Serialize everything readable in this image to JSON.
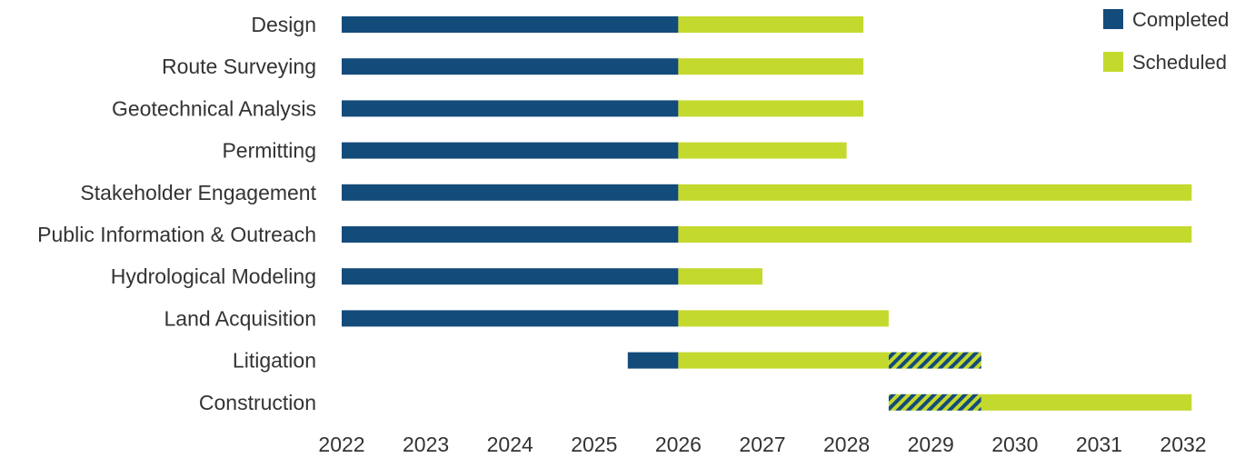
{
  "chart_data": {
    "type": "bar",
    "subtype": "gantt",
    "title": "",
    "xlabel": "",
    "ylabel": "",
    "x_ticks": [
      "2022",
      "2023",
      "2024",
      "2025",
      "2026",
      "2027",
      "2028",
      "2029",
      "2030",
      "2031",
      "2032"
    ],
    "xlim": [
      2022,
      2032
    ],
    "grid": false,
    "legend": {
      "placement": "top-right",
      "entries": [
        {
          "label": "Completed",
          "color": "#134b7a"
        },
        {
          "label": "Scheduled",
          "color": "#c4d92e"
        }
      ]
    },
    "colors": {
      "completed": "#134b7a",
      "scheduled": "#c4d92e",
      "hatch_stripe": "#134b7a",
      "hatch_base": "#c4d92e"
    },
    "tasks": [
      {
        "name": "Design",
        "segments": [
          {
            "status": "completed",
            "start": 2022.0,
            "end": 2026.0
          },
          {
            "status": "scheduled",
            "start": 2026.0,
            "end": 2028.2
          }
        ]
      },
      {
        "name": "Route Surveying",
        "segments": [
          {
            "status": "completed",
            "start": 2022.0,
            "end": 2026.0
          },
          {
            "status": "scheduled",
            "start": 2026.0,
            "end": 2028.2
          }
        ]
      },
      {
        "name": "Geotechnical Analysis",
        "segments": [
          {
            "status": "completed",
            "start": 2022.0,
            "end": 2026.0
          },
          {
            "status": "scheduled",
            "start": 2026.0,
            "end": 2028.2
          }
        ]
      },
      {
        "name": "Permitting",
        "segments": [
          {
            "status": "completed",
            "start": 2022.0,
            "end": 2026.0
          },
          {
            "status": "scheduled",
            "start": 2026.0,
            "end": 2028.0
          }
        ]
      },
      {
        "name": "Stakeholder Engagement",
        "segments": [
          {
            "status": "completed",
            "start": 2022.0,
            "end": 2026.0
          },
          {
            "status": "scheduled",
            "start": 2026.0,
            "end": 2032.1
          }
        ]
      },
      {
        "name": "Public Information & Outreach",
        "segments": [
          {
            "status": "completed",
            "start": 2022.0,
            "end": 2026.0
          },
          {
            "status": "scheduled",
            "start": 2026.0,
            "end": 2032.1
          }
        ]
      },
      {
        "name": "Hydrological Modeling",
        "segments": [
          {
            "status": "completed",
            "start": 2022.0,
            "end": 2026.0
          },
          {
            "status": "scheduled",
            "start": 2026.0,
            "end": 2027.0
          }
        ]
      },
      {
        "name": "Land Acquisition",
        "segments": [
          {
            "status": "completed",
            "start": 2022.0,
            "end": 2026.0
          },
          {
            "status": "scheduled",
            "start": 2026.0,
            "end": 2028.5
          }
        ]
      },
      {
        "name": "Litigation",
        "segments": [
          {
            "status": "completed",
            "start": 2025.4,
            "end": 2026.0
          },
          {
            "status": "scheduled",
            "start": 2026.0,
            "end": 2028.5
          },
          {
            "status": "hatched",
            "start": 2028.5,
            "end": 2029.6
          }
        ]
      },
      {
        "name": "Construction",
        "segments": [
          {
            "status": "hatched",
            "start": 2028.5,
            "end": 2029.6
          },
          {
            "status": "scheduled",
            "start": 2029.6,
            "end": 2032.1
          }
        ]
      }
    ]
  }
}
